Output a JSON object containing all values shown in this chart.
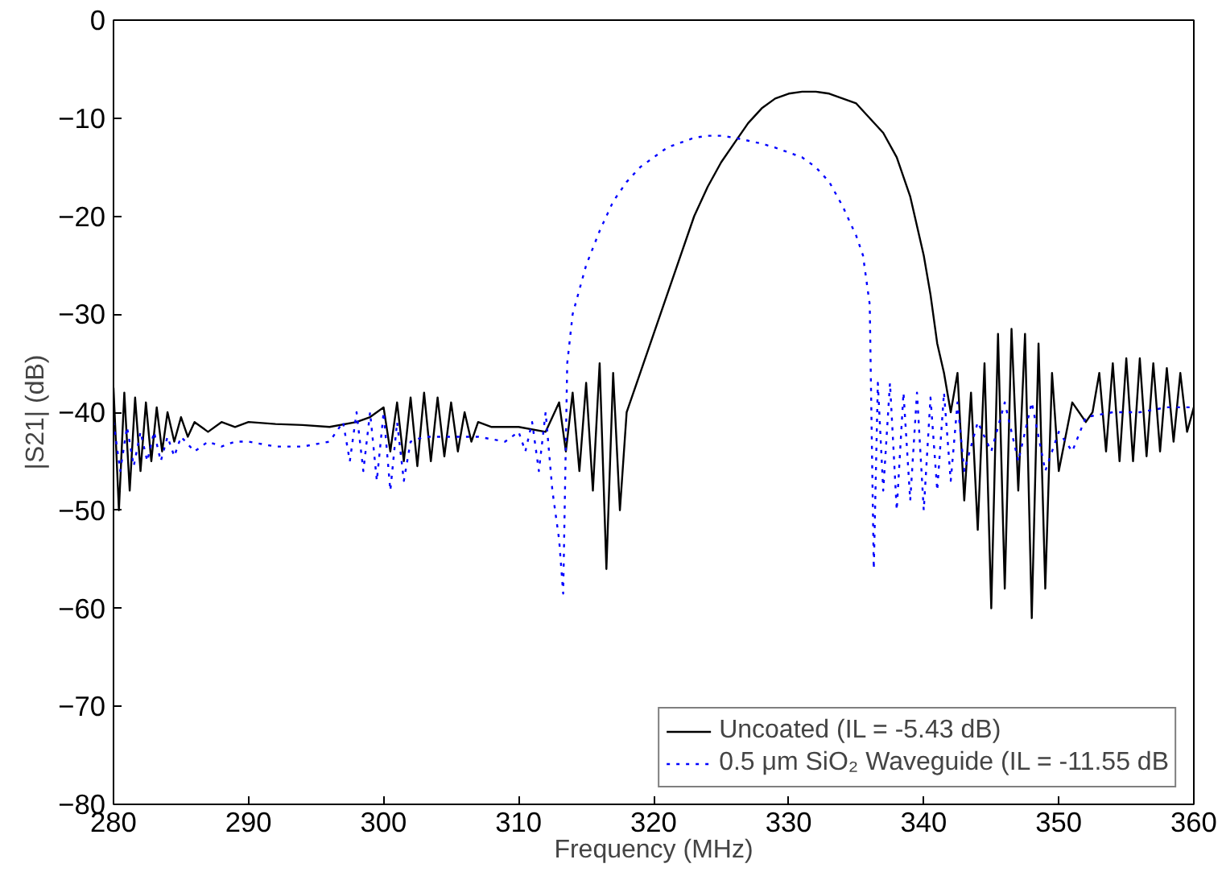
{
  "chart_data": {
    "type": "line",
    "xlabel": "Frequency (MHz)",
    "ylabel": "|S21| (dB)",
    "xlim": [
      280,
      360
    ],
    "ylim": [
      -80,
      0
    ],
    "xticks": [
      280,
      290,
      300,
      310,
      320,
      330,
      340,
      350,
      360
    ],
    "yticks": [
      -80,
      -70,
      -60,
      -50,
      -40,
      -30,
      -20,
      -10,
      0
    ],
    "grid": false,
    "legend": "bottom right",
    "series": [
      {
        "name": "Uncoated (IL = -5.43 dB)",
        "color": "#000000",
        "line_style": "solid",
        "x": [
          280,
          280.4,
          280.8,
          281.2,
          281.6,
          282,
          282.4,
          282.8,
          283.2,
          283.6,
          284,
          284.5,
          285,
          285.5,
          286,
          287,
          288,
          289,
          290,
          292,
          294,
          296,
          298,
          299,
          300,
          300.5,
          301,
          301.5,
          302,
          302.5,
          303,
          303.5,
          304,
          304.5,
          305,
          305.5,
          306,
          306.5,
          307,
          308,
          310,
          312,
          313,
          313.5,
          314,
          314.5,
          315,
          315.5,
          316,
          316.5,
          317,
          317.5,
          318,
          319,
          320,
          321,
          322,
          323,
          324,
          325,
          326,
          327,
          328,
          329,
          330,
          331,
          332,
          333,
          334,
          335,
          336,
          337,
          338,
          339,
          340,
          340.5,
          341,
          341.5,
          342,
          342.5,
          343,
          343.5,
          344,
          344.5,
          345,
          345.5,
          346,
          346.5,
          347,
          347.5,
          348,
          348.5,
          349,
          349.5,
          350,
          351,
          352,
          352.5,
          353,
          353.5,
          354,
          354.5,
          355,
          355.5,
          356,
          356.5,
          357,
          357.5,
          358,
          358.5,
          359,
          359.5,
          360
        ],
        "values": [
          -37.5,
          -50,
          -38,
          -48,
          -38.5,
          -46,
          -39,
          -45,
          -39.5,
          -44,
          -40,
          -43,
          -40.5,
          -42.5,
          -41,
          -42,
          -41,
          -41.5,
          -41,
          -41.2,
          -41.3,
          -41.5,
          -41,
          -40.5,
          -39.5,
          -44,
          -39,
          -45,
          -38.5,
          -45.5,
          -38,
          -45,
          -38.5,
          -44.5,
          -39,
          -44,
          -40,
          -43,
          -41,
          -41.5,
          -41.5,
          -42,
          -39,
          -44,
          -38,
          -46,
          -37,
          -48,
          -35,
          -56,
          -36,
          -50,
          -40,
          -36,
          -32,
          -28,
          -24,
          -20,
          -17,
          -14.5,
          -12.5,
          -10.5,
          -9,
          -8,
          -7.5,
          -7.3,
          -7.3,
          -7.5,
          -8,
          -8.5,
          -10,
          -11.5,
          -14,
          -18,
          -24,
          -28,
          -33,
          -36,
          -40,
          -36,
          -49,
          -38,
          -52,
          -35,
          -60,
          -32,
          -58,
          -31.5,
          -48,
          -32,
          -61,
          -33,
          -58,
          -36,
          -46,
          -39,
          -41,
          -40,
          -36,
          -44,
          -35,
          -45,
          -34.5,
          -45,
          -34.5,
          -44.5,
          -35,
          -44,
          -35.5,
          -43,
          -36,
          -42,
          -39.5
        ]
      },
      {
        "name": "0.5 μm SiO₂ Waveguide (IL = -11.55 dB",
        "color": "#0000ff",
        "line_style": "dotted",
        "x": [
          280,
          280.5,
          281,
          281.5,
          282,
          282.5,
          283,
          283.5,
          284,
          284.5,
          285,
          286,
          287,
          288,
          289,
          290,
          292,
          294,
          296,
          297,
          297.5,
          298,
          298.5,
          299,
          299.5,
          300,
          300.5,
          301,
          301.5,
          302,
          303,
          305,
          307,
          309,
          310,
          310.5,
          311,
          311.5,
          312,
          312.5,
          313,
          313.3,
          313.6,
          314,
          315,
          316,
          317,
          318,
          319,
          320,
          321,
          322,
          323,
          324,
          325,
          326,
          327,
          328,
          329,
          330,
          331,
          332,
          333,
          334,
          335,
          335.5,
          336,
          336.3,
          336.6,
          337,
          337.5,
          338,
          338.5,
          339,
          339.5,
          340,
          340.5,
          341,
          341.5,
          342,
          342.5,
          343,
          344,
          345,
          346,
          347,
          348,
          349,
          350,
          351,
          352,
          354,
          356,
          358,
          360
        ],
        "values": [
          -41,
          -46,
          -41.5,
          -45.5,
          -42,
          -45,
          -42,
          -45,
          -42.5,
          -44.5,
          -42.5,
          -44,
          -43,
          -43.5,
          -43,
          -43,
          -43.5,
          -43.5,
          -43,
          -41,
          -45,
          -40,
          -46,
          -40,
          -47,
          -40,
          -48,
          -41,
          -47,
          -43,
          -42.5,
          -42.5,
          -42.5,
          -43,
          -42,
          -44,
          -41,
          -46,
          -40,
          -48,
          -53,
          -58.5,
          -35,
          -30,
          -25,
          -21.5,
          -18.5,
          -16.5,
          -15,
          -14,
          -13,
          -12.5,
          -12,
          -11.8,
          -11.8,
          -12,
          -12.3,
          -12.6,
          -13,
          -13.5,
          -14,
          -15,
          -16.5,
          -19,
          -22,
          -24,
          -29,
          -56,
          -37,
          -48,
          -37,
          -50,
          -38,
          -49,
          -38,
          -50,
          -38.5,
          -48,
          -38,
          -47,
          -39,
          -46,
          -41,
          -44,
          -39,
          -45,
          -39,
          -46,
          -42,
          -44,
          -40.5,
          -40,
          -40,
          -39.5,
          -39.5
        ]
      }
    ]
  }
}
